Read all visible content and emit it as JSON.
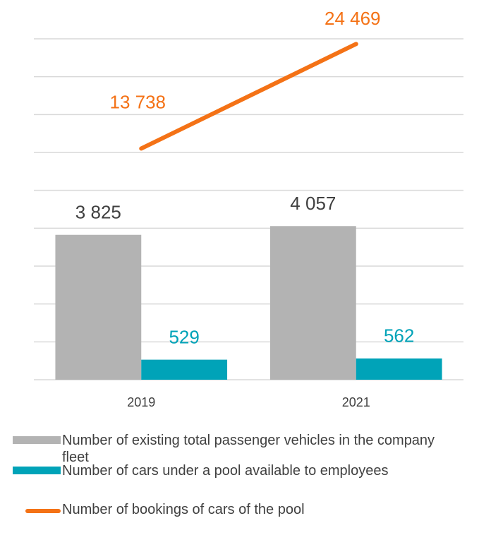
{
  "chart_data": {
    "type": "bar_line",
    "categories": [
      "2019",
      "2021"
    ],
    "series": [
      {
        "name": "Number of existing total passenger vehicles in the company fleet",
        "type": "bar",
        "color": "#b3b3b3",
        "values": [
          3825,
          4057
        ],
        "value_labels": [
          "3 825",
          "4 057"
        ]
      },
      {
        "name": "Number of cars under a pool available to employees",
        "type": "bar",
        "color": "#00a3b8",
        "values": [
          529,
          562
        ],
        "value_labels": [
          "529",
          "562"
        ]
      },
      {
        "name": "Number of bookings of cars of the pool",
        "type": "line",
        "axis": "y2",
        "color": "#f47216",
        "values": [
          13738,
          24469
        ],
        "value_labels": [
          "13 738",
          "24 469"
        ]
      }
    ],
    "ylim": [
      0,
      9000
    ],
    "yticks": [
      0,
      1000,
      2000,
      3000,
      4000,
      5000,
      6000,
      7000,
      8000,
      9000
    ],
    "ytick_labels": false,
    "y2lim": [
      -10000,
      25000
    ],
    "grid": true,
    "legend": "bottom"
  }
}
